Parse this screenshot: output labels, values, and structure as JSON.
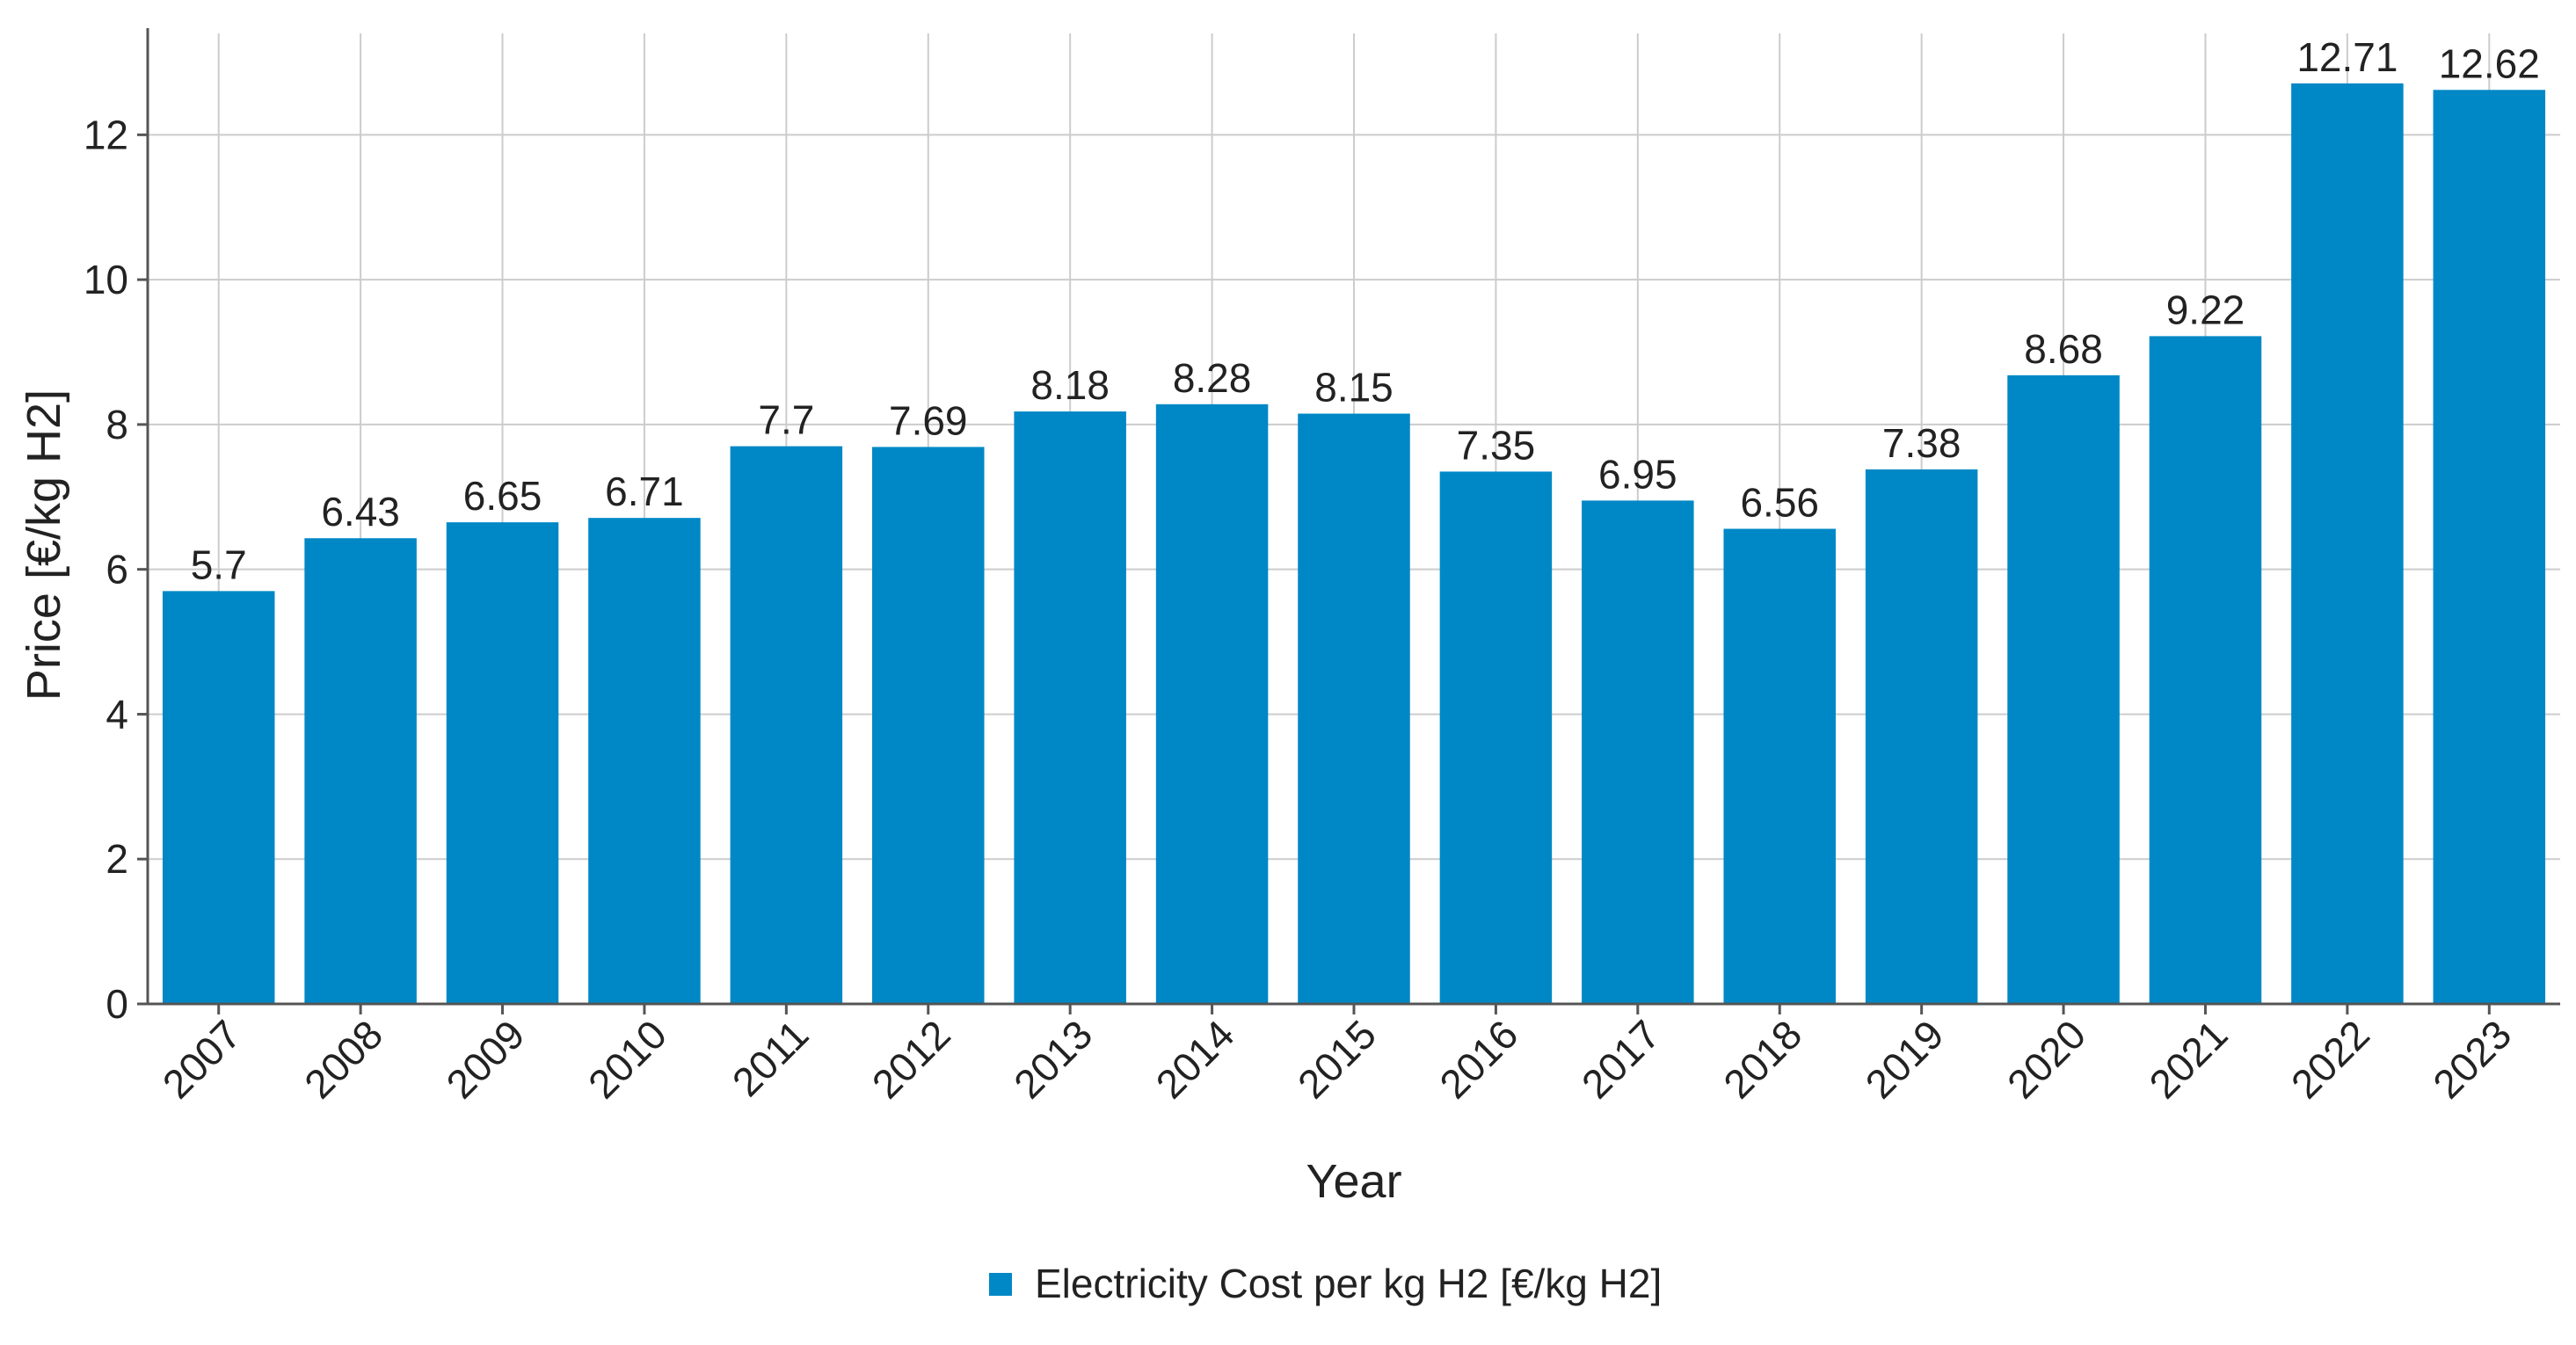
{
  "chart_data": {
    "type": "bar",
    "title": "",
    "xlabel": "Year",
    "ylabel": "Price [€/kg H2]",
    "ylim": [
      0,
      13.4
    ],
    "yticks": [
      0,
      2,
      4,
      6,
      8,
      10,
      12
    ],
    "grid": true,
    "legend_position": "bottom-center",
    "bar_color": "#0088c6",
    "categories": [
      "2007",
      "2008",
      "2009",
      "2010",
      "2011",
      "2012",
      "2013",
      "2014",
      "2015",
      "2016",
      "2017",
      "2018",
      "2019",
      "2020",
      "2021",
      "2022",
      "2023"
    ],
    "series": [
      {
        "name": "Electricity Cost per kg H2 [€/kg H2]",
        "values": [
          5.7,
          6.43,
          6.65,
          6.71,
          7.7,
          7.69,
          8.18,
          8.28,
          8.15,
          7.35,
          6.95,
          6.56,
          7.38,
          8.68,
          9.22,
          12.71,
          12.62
        ]
      }
    ]
  }
}
